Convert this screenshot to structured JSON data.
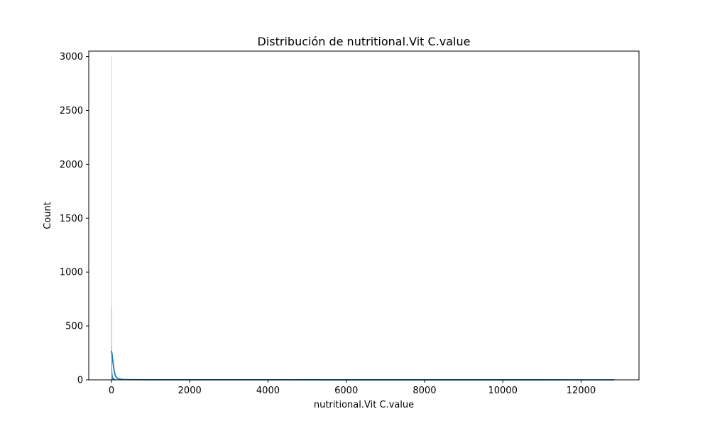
{
  "chart_data": {
    "type": "bar",
    "title": "Distribución de nutritional.Vit C.value",
    "xlabel": "nutritional.Vit C.value",
    "ylabel": "Count",
    "xlim": [
      -580,
      13480
    ],
    "ylim": [
      0,
      3050
    ],
    "xticks": [
      0,
      2000,
      4000,
      6000,
      8000,
      10000,
      12000
    ],
    "yticks": [
      0,
      500,
      1000,
      1500,
      2000,
      2500,
      3000
    ],
    "grid": false,
    "legend": "none",
    "bar_color": "#1f77b4",
    "bar_opacity": 0.5,
    "kde_color": "#1f77b4",
    "bins": [
      {
        "x0": 0,
        "x1": 3,
        "count": 3000
      },
      {
        "x0": 3,
        "x1": 6,
        "count": 680
      },
      {
        "x0": 6,
        "x1": 9,
        "count": 320
      },
      {
        "x0": 9,
        "x1": 12,
        "count": 180
      },
      {
        "x0": 12,
        "x1": 15,
        "count": 110
      },
      {
        "x0": 15,
        "x1": 18,
        "count": 85
      },
      {
        "x0": 18,
        "x1": 21,
        "count": 70
      },
      {
        "x0": 21,
        "x1": 24,
        "count": 55
      },
      {
        "x0": 24,
        "x1": 27,
        "count": 45
      },
      {
        "x0": 27,
        "x1": 30,
        "count": 40
      },
      {
        "x0": 30,
        "x1": 33,
        "count": 35
      },
      {
        "x0": 33,
        "x1": 36,
        "count": 30
      },
      {
        "x0": 36,
        "x1": 39,
        "count": 27
      },
      {
        "x0": 39,
        "x1": 42,
        "count": 24
      },
      {
        "x0": 42,
        "x1": 45,
        "count": 22
      },
      {
        "x0": 45,
        "x1": 48,
        "count": 20
      },
      {
        "x0": 48,
        "x1": 51,
        "count": 18
      },
      {
        "x0": 51,
        "x1": 54,
        "count": 16
      },
      {
        "x0": 54,
        "x1": 57,
        "count": 15
      },
      {
        "x0": 57,
        "x1": 60,
        "count": 14
      },
      {
        "x0": 60,
        "x1": 63,
        "count": 13
      },
      {
        "x0": 63,
        "x1": 66,
        "count": 12
      },
      {
        "x0": 66,
        "x1": 69,
        "count": 11
      },
      {
        "x0": 69,
        "x1": 72,
        "count": 10
      },
      {
        "x0": 72,
        "x1": 75,
        "count": 9
      },
      {
        "x0": 75,
        "x1": 78,
        "count": 8
      },
      {
        "x0": 78,
        "x1": 81,
        "count": 8
      },
      {
        "x0": 81,
        "x1": 84,
        "count": 7
      },
      {
        "x0": 84,
        "x1": 87,
        "count": 7
      },
      {
        "x0": 87,
        "x1": 90,
        "count": 6
      },
      {
        "x0": 90,
        "x1": 96,
        "count": 6
      },
      {
        "x0": 96,
        "x1": 102,
        "count": 5
      },
      {
        "x0": 102,
        "x1": 108,
        "count": 5
      },
      {
        "x0": 108,
        "x1": 114,
        "count": 4
      },
      {
        "x0": 114,
        "x1": 120,
        "count": 4
      },
      {
        "x0": 120,
        "x1": 140,
        "count": 3
      },
      {
        "x0": 140,
        "x1": 160,
        "count": 3
      },
      {
        "x0": 160,
        "x1": 200,
        "count": 2
      },
      {
        "x0": 200,
        "x1": 260,
        "count": 2
      },
      {
        "x0": 260,
        "x1": 400,
        "count": 1
      },
      {
        "x0": 400,
        "x1": 700,
        "count": 1
      }
    ],
    "kde": {
      "x": [
        0,
        15,
        30,
        45,
        60,
        75,
        90,
        105,
        120,
        150,
        200,
        300,
        500,
        1000,
        2000,
        4000,
        6000,
        8000,
        10000,
        12000,
        12850
      ],
      "y": [
        270,
        240,
        190,
        145,
        105,
        75,
        52,
        36,
        25,
        14,
        7,
        3,
        1.5,
        1,
        0.8,
        0.6,
        0.5,
        0.4,
        0.3,
        0.2,
        0.1
      ]
    }
  }
}
